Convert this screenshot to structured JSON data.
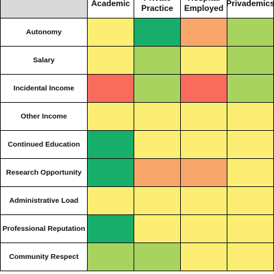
{
  "header": {
    "columns": [
      "Academic",
      "Private Practice",
      "Hospital Employed",
      "Privademics"
    ]
  },
  "table": {
    "rows": [
      {
        "label": "Autonomy",
        "colors": [
          "#fbee73",
          "#17ae6b",
          "#f8a66a",
          "#a8d35f"
        ]
      },
      {
        "label": "Salary",
        "colors": [
          "#fbee73",
          "#a8d35f",
          "#fbee73",
          "#a8d35f"
        ]
      },
      {
        "label": "Incidental Income",
        "colors": [
          "#f86b5d",
          "#a8d35f",
          "#f86b5d",
          "#a8d35f"
        ]
      },
      {
        "label": "Other Income",
        "colors": [
          "#fbee73",
          "#fbee73",
          "#fbee73",
          "#fbee73"
        ]
      },
      {
        "label": "Continued Education",
        "colors": [
          "#17ae6b",
          "#fbee73",
          "#fbee73",
          "#fbee73"
        ]
      },
      {
        "label": "Research Opportunity",
        "colors": [
          "#17ae6b",
          "#f8a66a",
          "#f8a66a",
          "#fbee73"
        ]
      },
      {
        "label": "Administrative Load",
        "colors": [
          "#fbee73",
          "#fbee73",
          "#fbee73",
          "#fbee73"
        ]
      },
      {
        "label": "Professional Reputation",
        "colors": [
          "#17ae6b",
          "#fbee73",
          "#fbee73",
          "#fbee73"
        ]
      },
      {
        "label": "Community Respect",
        "colors": [
          "#a8d35f",
          "#a8d35f",
          "#fbee73",
          "#fbee73"
        ]
      }
    ]
  }
}
